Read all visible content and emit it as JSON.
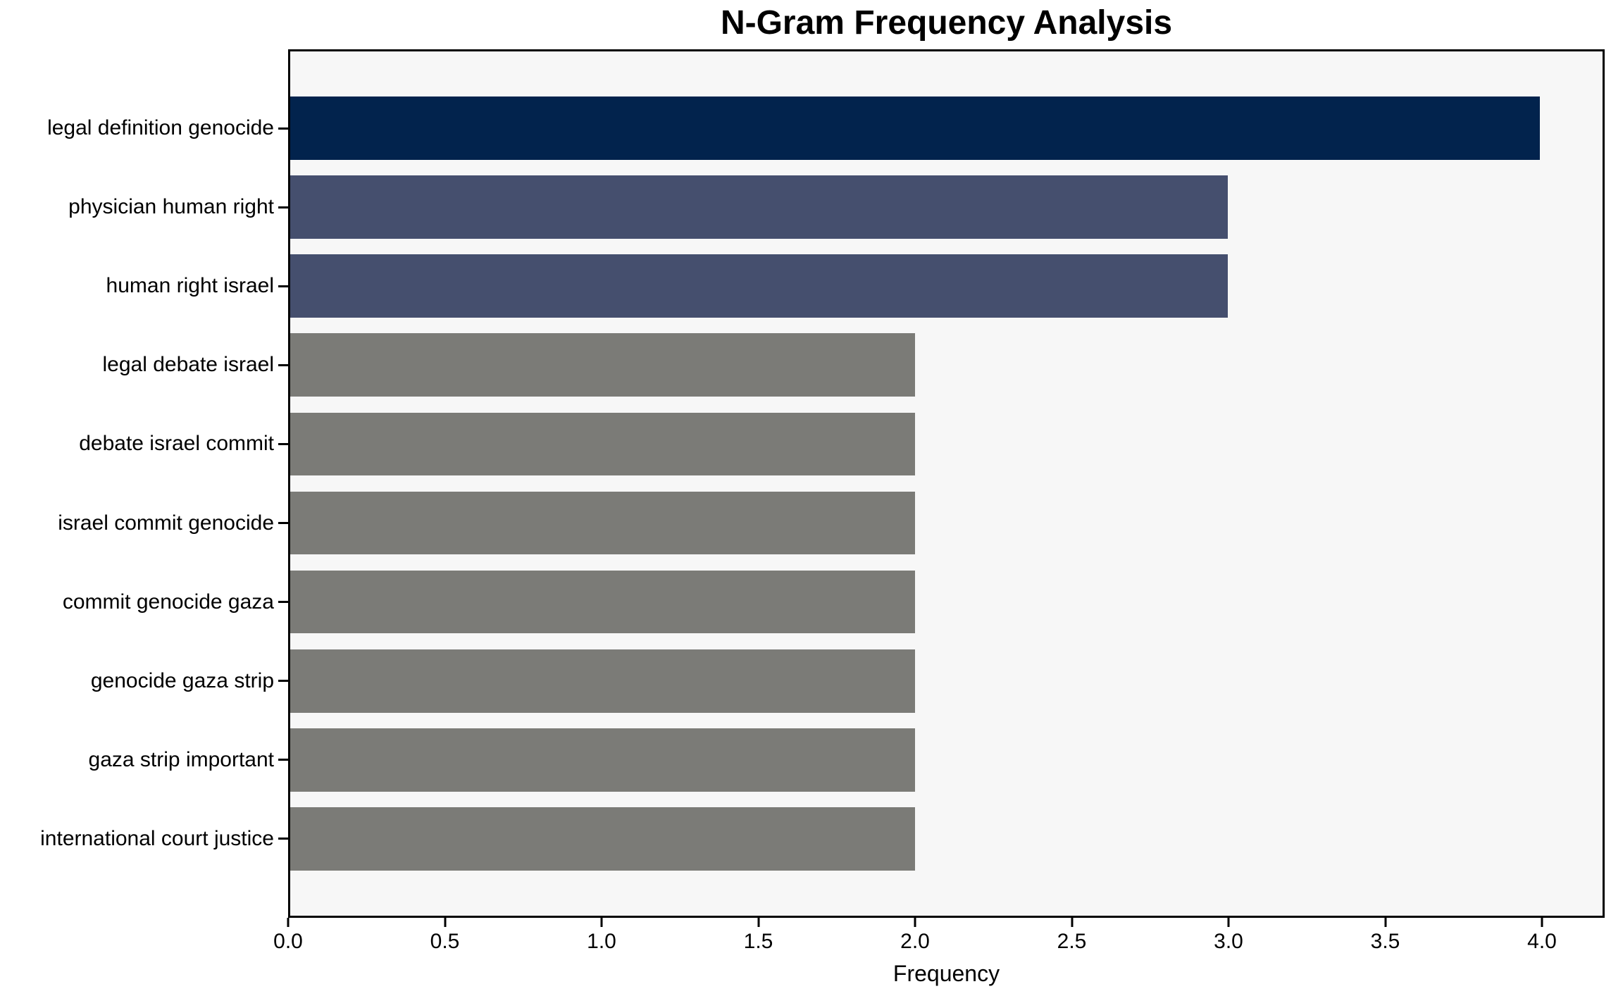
{
  "chart_data": {
    "type": "bar",
    "orientation": "horizontal",
    "title": "N-Gram Frequency Analysis",
    "xlabel": "Frequency",
    "ylabel": "",
    "categories": [
      "legal definition genocide",
      "physician human right",
      "human right israel",
      "legal debate israel",
      "debate israel commit",
      "israel commit genocide",
      "commit genocide gaza",
      "genocide gaza strip",
      "gaza strip important",
      "international court justice"
    ],
    "values": [
      4,
      3,
      3,
      2,
      2,
      2,
      2,
      2,
      2,
      2
    ],
    "bar_colors": [
      "#02234d",
      "#454f6e",
      "#454f6e",
      "#7b7b77",
      "#7b7b77",
      "#7b7b77",
      "#7b7b77",
      "#7b7b77",
      "#7b7b77",
      "#7b7b77"
    ],
    "xlim": [
      0.0,
      4.2
    ],
    "xtick_values": [
      0.0,
      0.5,
      1.0,
      1.5,
      2.0,
      2.5,
      3.0,
      3.5,
      4.0
    ],
    "xtick_labels": [
      "0.0",
      "0.5",
      "1.0",
      "1.5",
      "2.0",
      "2.5",
      "3.0",
      "3.5",
      "4.0"
    ],
    "grid": false,
    "legend_position": "none",
    "colors": {
      "plot_background": "#f7f7f7",
      "figure_background": "#ffffff",
      "spine": "#000000",
      "text": "#000000"
    }
  }
}
